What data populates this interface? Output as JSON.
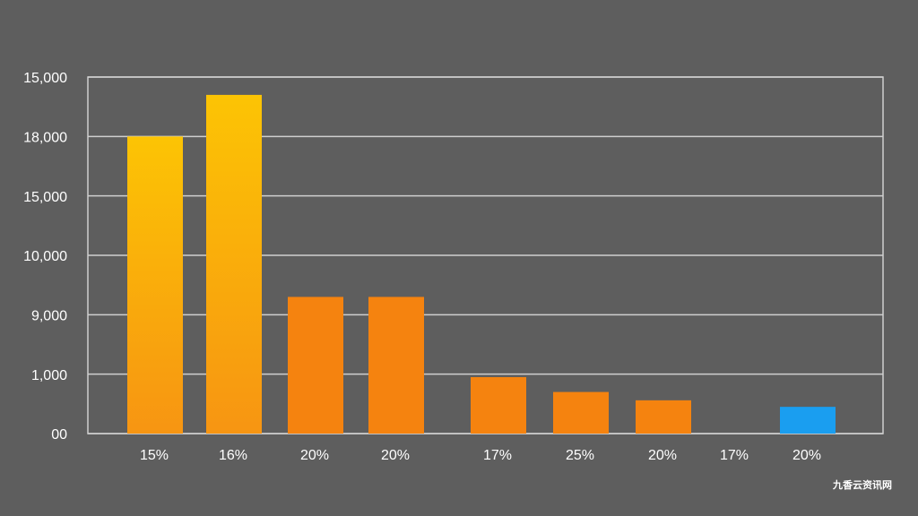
{
  "chart_data": {
    "type": "bar",
    "categories": [
      "15%",
      "16%",
      "20%",
      "20%",
      "17%",
      "25%",
      "20%",
      "17%",
      "20%"
    ],
    "values": [
      5.0,
      5.7,
      2.3,
      2.3,
      0.95,
      0.7,
      0.56,
      null,
      0.45
    ],
    "colors": [
      "#fbac12",
      "#fbb410",
      "#f5830f",
      "#f5830f",
      "#f5830f",
      "#f5830f",
      "#f5830f",
      "#f5830f",
      "#1a9ef0"
    ],
    "ylim": [
      0,
      6
    ],
    "yticks": [
      {
        "value": 0,
        "label": "00"
      },
      {
        "value": 1,
        "label": "1,000"
      },
      {
        "value": 2,
        "label": "9,000"
      },
      {
        "value": 3,
        "label": "10,000"
      },
      {
        "value": 4,
        "label": "15,000"
      },
      {
        "value": 5,
        "label": "18,000"
      },
      {
        "value": 6,
        "label": "15,000"
      }
    ],
    "grid": true,
    "watermark": "九香云资讯网"
  }
}
